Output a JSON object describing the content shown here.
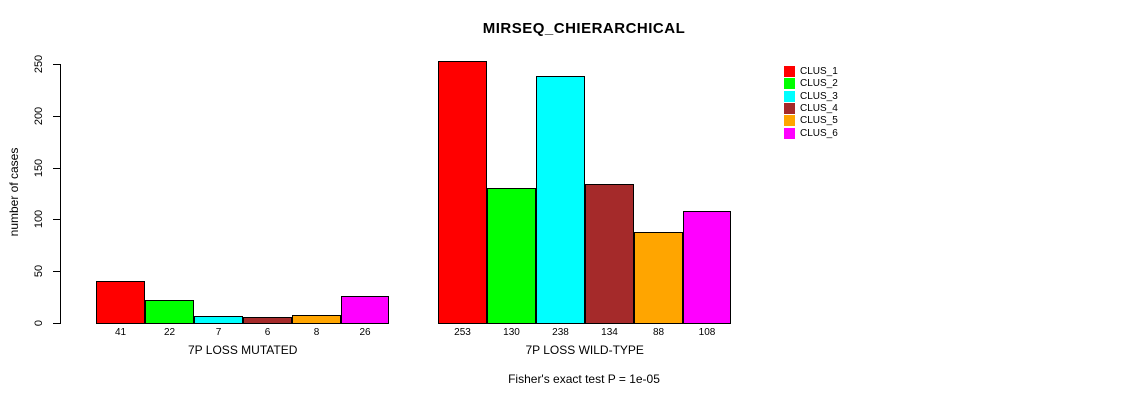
{
  "title": "MIRSEQ_CHIERARCHICAL",
  "y_axis_label": "number of cases",
  "footer": "Fisher's exact test P = 1e-05",
  "chart_data": {
    "type": "bar",
    "title": "MIRSEQ_CHIERARCHICAL",
    "ylabel": "number of cases",
    "xlabel": "",
    "ylim": [
      0,
      250
    ],
    "yticks": [
      0,
      50,
      100,
      150,
      200,
      250
    ],
    "grid": false,
    "legend_position": "top-right",
    "bar_value_labels": true,
    "categories": [
      "7P LOSS MUTATED",
      "7P LOSS WILD-TYPE"
    ],
    "series": [
      {
        "name": "CLUS_1",
        "color": "#FF0000",
        "values": [
          41,
          253
        ]
      },
      {
        "name": "CLUS_2",
        "color": "#00FF00",
        "values": [
          22,
          130
        ]
      },
      {
        "name": "CLUS_3",
        "color": "#00FFFF",
        "values": [
          7,
          238
        ]
      },
      {
        "name": "CLUS_4",
        "color": "#A52A2A",
        "values": [
          6,
          134
        ]
      },
      {
        "name": "CLUS_5",
        "color": "#FFA500",
        "values": [
          8,
          88
        ]
      },
      {
        "name": "CLUS_6",
        "color": "#FF00FF",
        "values": [
          26,
          108
        ]
      }
    ],
    "annotation": "Fisher's exact test P = 1e-05"
  }
}
